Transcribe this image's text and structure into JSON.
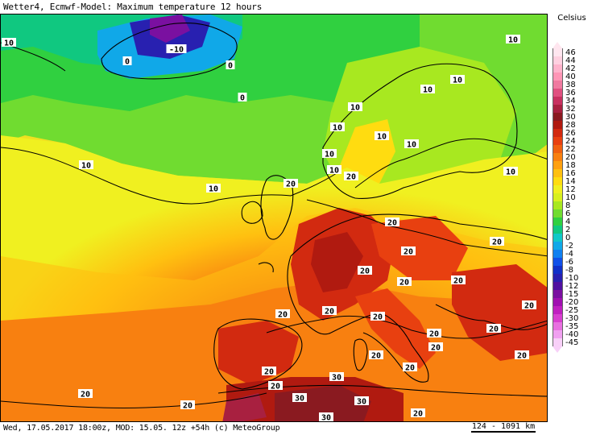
{
  "title": "Wetter4, Ecmwf-Model: Maximum temperature 12 hours",
  "footer": "Wed, 17.05.2017 18:00z, MOD: 15.05. 12z +54h (c) MeteoGroup",
  "scale": "124 - 1091 km",
  "legend": {
    "unit": "Celsius",
    "entries": [
      {
        "label": "46",
        "color": "#ffe6ef"
      },
      {
        "label": "44",
        "color": "#ffd0e0"
      },
      {
        "label": "42",
        "color": "#ffb3cc"
      },
      {
        "label": "40",
        "color": "#ff96b6"
      },
      {
        "label": "38",
        "color": "#f07aa0"
      },
      {
        "label": "36",
        "color": "#e05080"
      },
      {
        "label": "34",
        "color": "#c83060"
      },
      {
        "label": "32",
        "color": "#a82040"
      },
      {
        "label": "30",
        "color": "#8a1a20"
      },
      {
        "label": "28",
        "color": "#b01a10"
      },
      {
        "label": "26",
        "color": "#d22a10"
      },
      {
        "label": "24",
        "color": "#e84010"
      },
      {
        "label": "22",
        "color": "#f06010"
      },
      {
        "label": "20",
        "color": "#f88010"
      },
      {
        "label": "18",
        "color": "#ffa010"
      },
      {
        "label": "16",
        "color": "#ffc010"
      },
      {
        "label": "14",
        "color": "#ffdc10"
      },
      {
        "label": "12",
        "color": "#f0f020"
      },
      {
        "label": "10",
        "color": "#d8f020"
      },
      {
        "label": "8",
        "color": "#a8e820"
      },
      {
        "label": "6",
        "color": "#70dc30"
      },
      {
        "label": "4",
        "color": "#30d040"
      },
      {
        "label": "2",
        "color": "#10c880"
      },
      {
        "label": "0",
        "color": "#10c8c8"
      },
      {
        "label": "-2",
        "color": "#10a8e8"
      },
      {
        "label": "-4",
        "color": "#1080f0"
      },
      {
        "label": "-6",
        "color": "#1050e8"
      },
      {
        "label": "-8",
        "color": "#1030c8"
      },
      {
        "label": "-10",
        "color": "#2820b0"
      },
      {
        "label": "-12",
        "color": "#5010a0"
      },
      {
        "label": "-15",
        "color": "#7a10a0"
      },
      {
        "label": "-20",
        "color": "#a010b0"
      },
      {
        "label": "-25",
        "color": "#c020c0"
      },
      {
        "label": "-30",
        "color": "#d840d0"
      },
      {
        "label": "-35",
        "color": "#e870e0"
      },
      {
        "label": "-40",
        "color": "#f0a0f0"
      },
      {
        "label": "-45",
        "color": "#f8d0f8"
      }
    ]
  },
  "isotherm_labels": [
    {
      "text": "10"
    },
    {
      "text": "0"
    },
    {
      "text": "-10"
    },
    {
      "text": "0"
    },
    {
      "text": "0"
    },
    {
      "text": "10"
    },
    {
      "text": "10"
    },
    {
      "text": "10"
    },
    {
      "text": "10"
    },
    {
      "text": "10"
    },
    {
      "text": "10"
    },
    {
      "text": "10"
    },
    {
      "text": "10"
    },
    {
      "text": "10"
    },
    {
      "text": "20"
    },
    {
      "text": "10"
    },
    {
      "text": "10"
    },
    {
      "text": "20"
    },
    {
      "text": "20"
    },
    {
      "text": "20"
    },
    {
      "text": "20"
    },
    {
      "text": "20"
    },
    {
      "text": "20"
    },
    {
      "text": "20"
    },
    {
      "text": "20"
    },
    {
      "text": "20"
    },
    {
      "text": "20"
    },
    {
      "text": "20"
    },
    {
      "text": "20"
    },
    {
      "text": "20"
    },
    {
      "text": "20"
    },
    {
      "text": "20"
    },
    {
      "text": "20"
    },
    {
      "text": "20"
    },
    {
      "text": "30"
    },
    {
      "text": "20"
    },
    {
      "text": "20"
    },
    {
      "text": "30"
    },
    {
      "text": "30"
    },
    {
      "text": "20"
    },
    {
      "text": "30"
    },
    {
      "text": "20"
    },
    {
      "text": "20"
    },
    {
      "text": "10"
    }
  ]
}
